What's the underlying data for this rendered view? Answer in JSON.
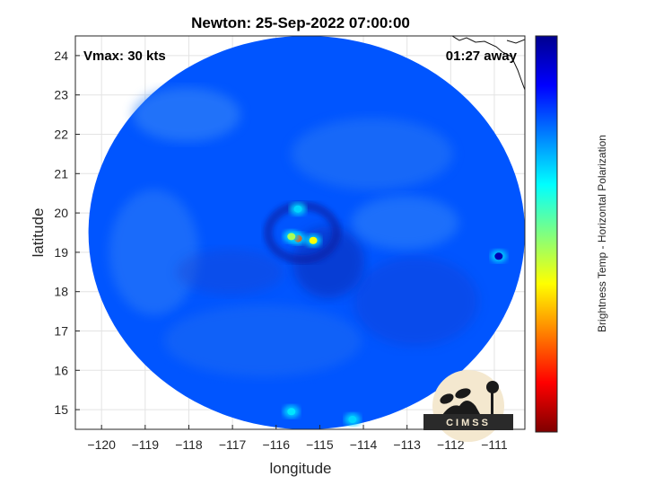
{
  "chart_data": {
    "type": "heatmap",
    "title": "Newton: 25-Sep-2022 07:00:00",
    "xlabel": "longitude",
    "ylabel": "latitude",
    "xlim": [
      -120.6,
      -110.3
    ],
    "ylim": [
      14.5,
      24.5
    ],
    "xticks": [
      -120,
      -119,
      -118,
      -117,
      -116,
      -115,
      -114,
      -113,
      -112,
      -111
    ],
    "yticks": [
      15,
      16,
      17,
      18,
      19,
      20,
      21,
      22,
      23,
      24
    ],
    "grid": true,
    "annotations": {
      "vmax": "Vmax: 30 kts",
      "time_away": "01:27 away"
    },
    "colorbar": {
      "label": "Brightness Temp - Horizontal Polarization",
      "range": [
        160,
        280
      ],
      "ticks": [
        160,
        180,
        200,
        220,
        240,
        260,
        280
      ],
      "colormap": [
        "#7f0000",
        "#ff0000",
        "#ff8000",
        "#ffff00",
        "#80ff80",
        "#00ffff",
        "#0080ff",
        "#0000ff",
        "#00008f"
      ]
    },
    "swath": {
      "center_lon": -115.3,
      "center_lat": 19.5,
      "radius_deg": 5.0
    },
    "cold_features": [
      {
        "lon": -115.5,
        "lat": 19.35,
        "tb": 185
      },
      {
        "lon": -115.15,
        "lat": 19.3,
        "tb": 205
      },
      {
        "lon": -115.65,
        "lat": 19.4,
        "tb": 215
      },
      {
        "lon": -115.5,
        "lat": 20.1,
        "tb": 240
      },
      {
        "lon": -115.65,
        "lat": 14.95,
        "tb": 238
      },
      {
        "lon": -114.25,
        "lat": 14.75,
        "tb": 240
      },
      {
        "lon": -110.9,
        "lat": 18.9,
        "tb": 275
      }
    ],
    "background_tb": 255
  },
  "logo": {
    "text": "CIMSS"
  }
}
